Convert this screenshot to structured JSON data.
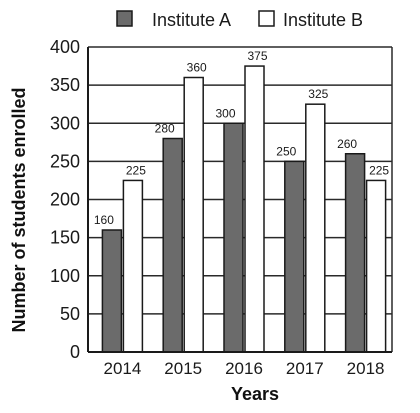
{
  "chart_data": {
    "type": "bar",
    "categories": [
      "2014",
      "2015",
      "2016",
      "2017",
      "2018"
    ],
    "series": [
      {
        "name": "Institute A",
        "values": [
          160,
          280,
          300,
          250,
          260
        ],
        "color": "#6b6b6b"
      },
      {
        "name": "Institute B",
        "values": [
          225,
          360,
          375,
          325,
          225
        ],
        "color": "#ffffff"
      }
    ],
    "xlabel": "Years",
    "ylabel": "Number of students enrolled",
    "ylim": [
      0,
      400
    ],
    "yticks": [
      "0",
      "50",
      "100",
      "150",
      "200",
      "250",
      "300",
      "350",
      "400"
    ],
    "grid": true,
    "legend": "top"
  }
}
